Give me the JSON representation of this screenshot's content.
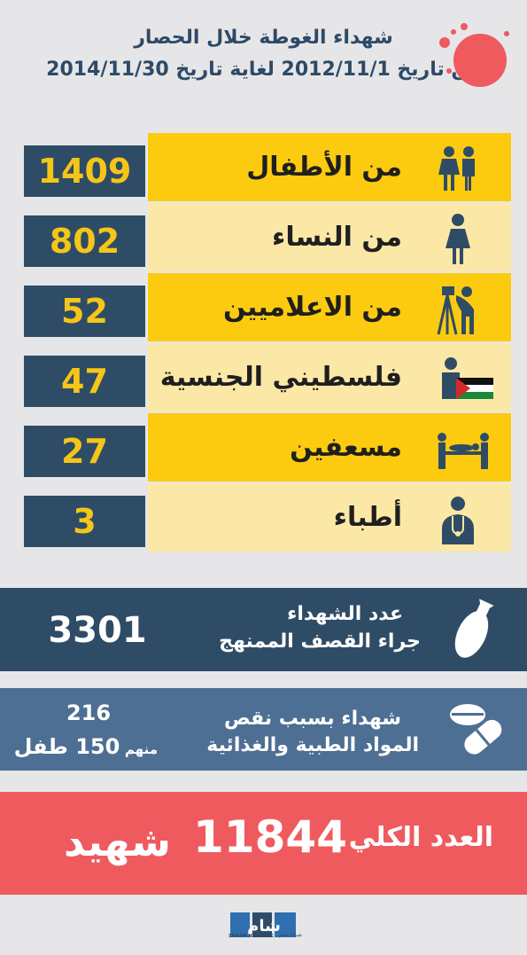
{
  "header": {
    "title": "شهداء الغوطة خلال الحصار",
    "subtitle": "من تاريخ 2012/11/1 لغاية تاريخ 2014/11/30"
  },
  "rows": [
    {
      "label": "من الأطفال",
      "value": "1409",
      "icon": "children-icon"
    },
    {
      "label": "من النساء",
      "value": "802",
      "icon": "woman-icon"
    },
    {
      "label": "من الاعلاميين",
      "value": "52",
      "icon": "camera-person-icon"
    },
    {
      "label": "فلسطيني الجنسية",
      "value": "47",
      "icon": "palestine-flag-person-icon"
    },
    {
      "label": "مسعفين",
      "value": "27",
      "icon": "stretcher-icon"
    },
    {
      "label": "أطباء",
      "value": "3",
      "icon": "doctor-icon"
    }
  ],
  "bombing": {
    "value": "3301",
    "line1": "عدد الشهداء",
    "line2": "جراء القصف الممنهج",
    "icon": "bomb-icon"
  },
  "shortage": {
    "value": "216",
    "sub_prefix": "منهم",
    "sub_value": "150 طفل",
    "line1": "شهداء بسبب نقص",
    "line2": "المواد الطبية والغذائية",
    "icon": "pills-icon"
  },
  "total": {
    "label": "العدد الكلي",
    "value": "11844",
    "unit": "شهيد"
  },
  "logo": {
    "english": "SHAAM NETWORK",
    "arabic": "شبكة شام",
    "mark": "شام"
  },
  "colors": {
    "background": "#e6e6e8",
    "navy": "#2f4c66",
    "yellow": "#fccb0f",
    "light_yellow": "#fce8a6",
    "steel_blue": "#4d6f93",
    "red": "#ef5a5e"
  }
}
